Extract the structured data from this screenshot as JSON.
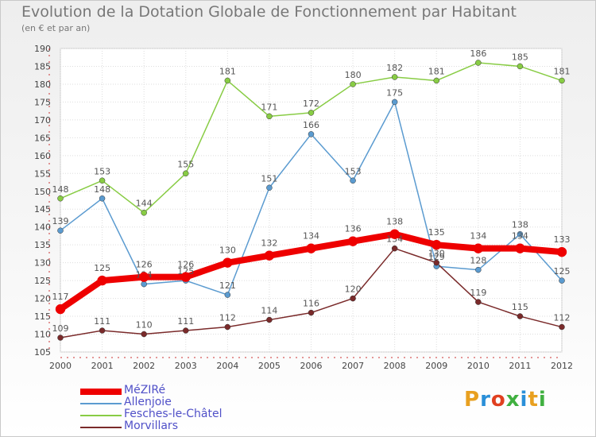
{
  "title": "Evolution de la Dotation Globale de Fonctionnement par Habitant",
  "subtitle": "(en € et par an)",
  "logo": {
    "text": "Proxiti",
    "colors": [
      "#e8a020",
      "#2a8fd8",
      "#e04020",
      "#40b040",
      "#2a8fd8",
      "#e8a020",
      "#40b040"
    ]
  },
  "chart_data": {
    "type": "line",
    "x": [
      "2000",
      "2001",
      "2002",
      "2003",
      "2004",
      "2005",
      "2006",
      "2007",
      "2008",
      "2009",
      "2010",
      "2011",
      "2012"
    ],
    "ylim": [
      105,
      190
    ],
    "yticks": [
      105,
      110,
      115,
      120,
      125,
      130,
      135,
      140,
      145,
      150,
      155,
      160,
      165,
      170,
      175,
      180,
      185,
      190
    ],
    "grid": true,
    "legend": "bottom-left",
    "series": [
      {
        "name": "Fesches-le-Châtel",
        "color": "#88cc44",
        "width": 1.5,
        "marker": 3.5,
        "values": [
          148,
          153,
          144,
          155,
          181,
          171,
          172,
          180,
          182,
          181,
          186,
          185,
          181
        ]
      },
      {
        "name": "Allenjoie",
        "color": "#5b9bd0",
        "width": 1.5,
        "marker": 3.5,
        "values": [
          139,
          148,
          124,
          125,
          121,
          151,
          166,
          153,
          175,
          129,
          128,
          138,
          125
        ]
      },
      {
        "name": "Morvillars",
        "color": "#7a2a2a",
        "width": 1.5,
        "marker": 3.5,
        "values": [
          109,
          111,
          110,
          111,
          112,
          114,
          116,
          120,
          134,
          130,
          119,
          115,
          112
        ]
      },
      {
        "name": "MéZIRé",
        "color": "#ee0000",
        "width": 8,
        "marker": 6,
        "values": [
          117,
          125,
          126,
          126,
          130,
          132,
          134,
          136,
          138,
          135,
          134,
          134,
          133
        ]
      }
    ],
    "legend_order": [
      "MéZIRé",
      "Allenjoie",
      "Fesches-le-Châtel",
      "Morvillars"
    ]
  }
}
